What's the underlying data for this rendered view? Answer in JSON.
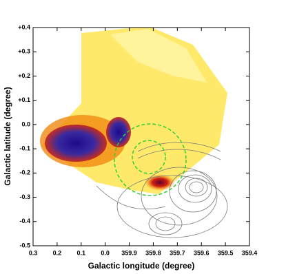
{
  "chart_data": {
    "type": "image",
    "xlabel": "Galactic longitude (degree)",
    "ylabel": "Galactic latitude (degree)",
    "xlim": [
      0.3,
      -0.6
    ],
    "ylim": [
      -0.5,
      0.4
    ],
    "xticks": [
      0.3,
      0.2,
      0.1,
      {
        "value": 0,
        "label": "0.0"
      },
      {
        "value": -0.1,
        "label": "359.9"
      },
      {
        "value": -0.2,
        "label": "359.8"
      },
      {
        "value": -0.3,
        "label": "359.7"
      },
      {
        "value": -0.4,
        "label": "359.6"
      },
      {
        "value": -0.5,
        "label": "359.5"
      },
      {
        "value": -0.6,
        "label": "359.4"
      }
    ],
    "yticks": [
      -0.5,
      -0.4,
      -0.3,
      -0.2,
      -0.1,
      {
        "value": 0,
        "label": "0.0"
      },
      {
        "value": 0.1,
        "label": "+0.1"
      },
      {
        "value": 0.2,
        "label": "+0.2"
      },
      {
        "value": 0.3,
        "label": "+0.3"
      },
      {
        "value": 0.4,
        "label": "+0.4"
      }
    ]
  }
}
